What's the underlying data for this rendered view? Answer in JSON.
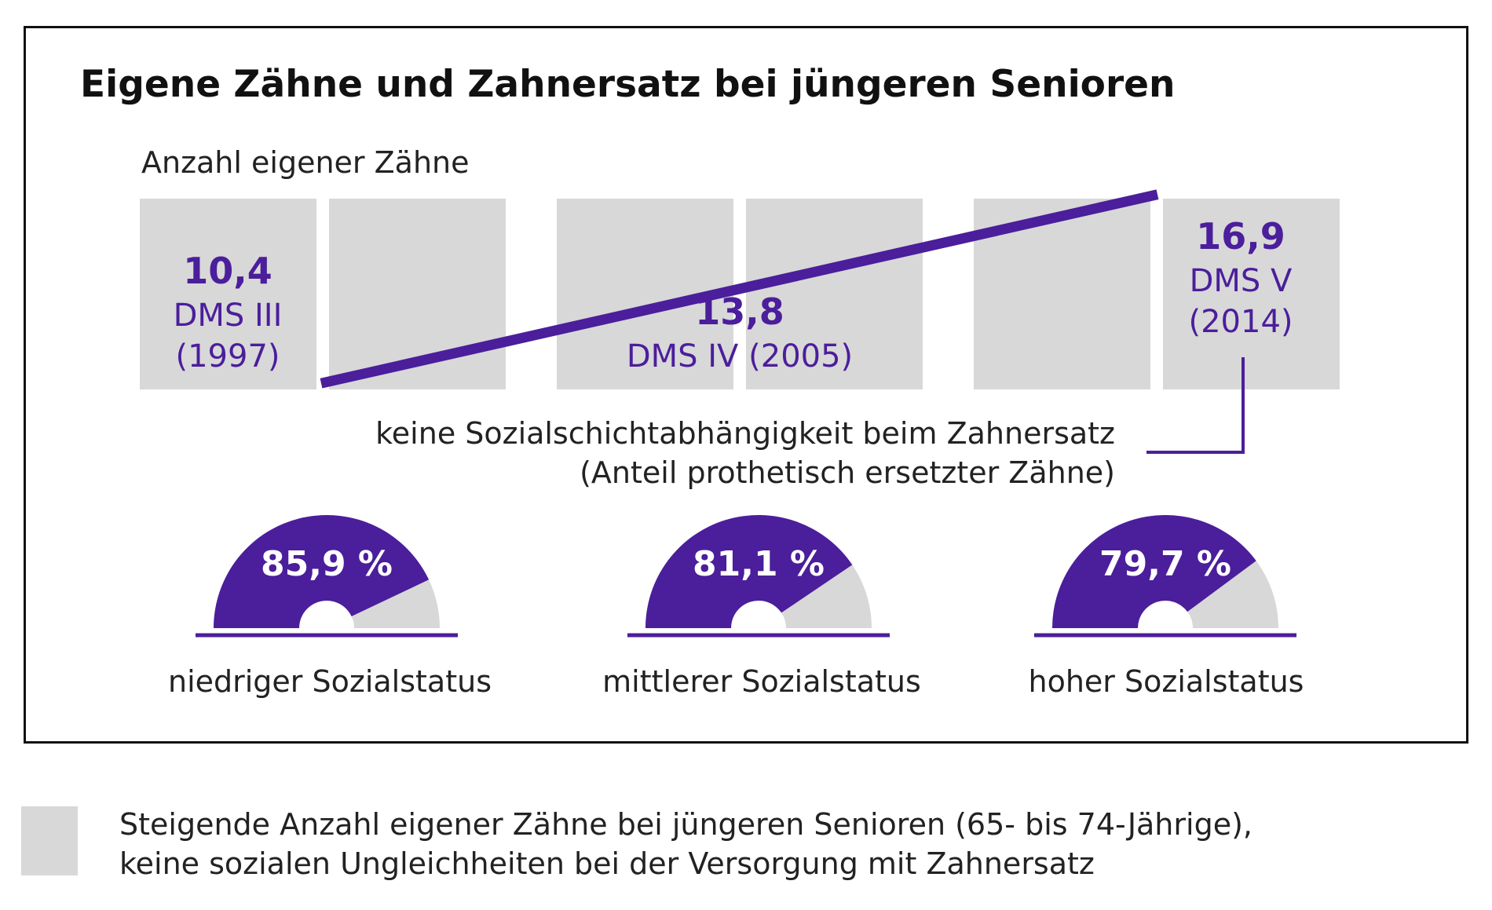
{
  "colors": {
    "accent": "#4b1e9b",
    "block": "#d8d8d8",
    "text": "#222222",
    "frame": "#111111"
  },
  "title": "Eigene Zähne und Zahnersatz bei jüngeren Senioren",
  "caption": {
    "line1": "keine Sozialschichtabhängigkeit beim Zahnersatz",
    "line2": "(Anteil prothetisch ersetzter Zähne)"
  },
  "legend": {
    "line1": "Steigende Anzahl eigener Zähne bei jüngeren Senioren (65- bis 74-Jährige),",
    "line2": "keine sozialen Ungleichheiten bei der Versorgung mit Zahnersatz"
  },
  "chart_data": [
    {
      "type": "line",
      "subtitle": "Anzahl eigener Zähne",
      "points": [
        {
          "value": 10.4,
          "value_label": "10,4",
          "label_lines": [
            "DMS III",
            "(1997)"
          ]
        },
        {
          "value": 13.8,
          "value_label": "13,8",
          "label_lines": [
            "DMS IV (2005)"
          ]
        },
        {
          "value": 16.9,
          "value_label": "16,9",
          "label_lines": [
            "DMS V",
            "(2014)"
          ]
        }
      ]
    },
    {
      "type": "gauge",
      "series": [
        {
          "name": "niedriger Sozialstatus",
          "value": 85.9,
          "value_label": "85,9 %"
        },
        {
          "name": "mittlerer Sozialstatus",
          "value": 81.1,
          "value_label": "81,1 %"
        },
        {
          "name": "hoher Sozialstatus",
          "value": 79.7,
          "value_label": "79,7 %"
        }
      ],
      "max": 100
    }
  ]
}
